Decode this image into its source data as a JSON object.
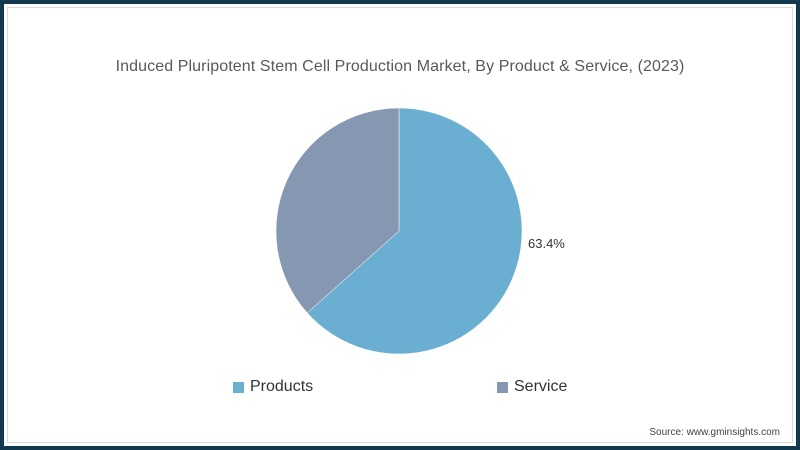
{
  "chart": {
    "title": "Induced Pluripotent Stem Cell Production Market, By Product & Service, (2023)",
    "data_label": "63.4%",
    "legend": [
      {
        "label": "Products",
        "color": "#6aaed1"
      },
      {
        "label": "Service",
        "color": "#8698b1"
      }
    ],
    "source": "Source: www.gminsights.com"
  },
  "chart_data": {
    "type": "pie",
    "title": "Induced Pluripotent Stem Cell Production Market, By Product & Service, (2023)",
    "categories": [
      "Products",
      "Service"
    ],
    "values": [
      63.4,
      36.6
    ],
    "unit": "%",
    "data_labels": {
      "Products": "63.4%"
    },
    "colors": {
      "Products": "#6aaed1",
      "Service": "#8698b1"
    },
    "start_angle": "12 o'clock, clockwise",
    "legend_position": "bottom",
    "source": "Source: www.gminsights.com"
  }
}
